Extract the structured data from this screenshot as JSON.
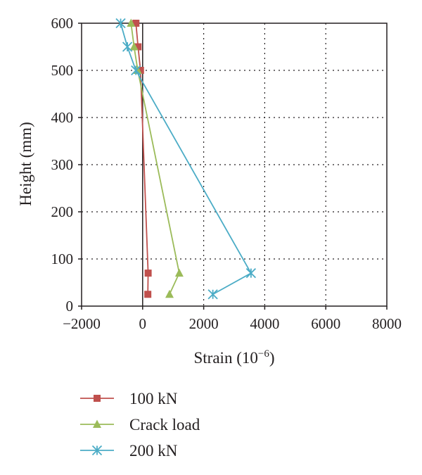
{
  "chart_data": {
    "type": "line",
    "title": "",
    "xlabel": "Strain (10",
    "xlabel_exp": "−6",
    "xlabel_close": ")",
    "ylabel": "Height (mm)",
    "xlim": [
      -2000,
      8000
    ],
    "ylim": [
      0,
      600
    ],
    "x_ticks": [
      -2000,
      0,
      2000,
      4000,
      6000,
      8000
    ],
    "x_tick_labels": [
      "−2000",
      "0",
      "2000",
      "4000",
      "6000",
      "8000"
    ],
    "y_ticks": [
      0,
      100,
      200,
      300,
      400,
      500,
      600
    ],
    "y_tick_labels": [
      "0",
      "100",
      "200",
      "300",
      "400",
      "500",
      "600"
    ],
    "grid": "dotted",
    "legend_position": "bottom",
    "series": [
      {
        "name": "100 kN",
        "color": "#c0504d",
        "marker": "square",
        "x": [
          170,
          180,
          -70,
          -150,
          -220
        ],
        "y": [
          25,
          70,
          500,
          550,
          600
        ]
      },
      {
        "name": "Crack load",
        "color": "#9bbb59",
        "marker": "triangle",
        "x": [
          880,
          1200,
          -160,
          -280,
          -380
        ],
        "y": [
          25,
          70,
          500,
          550,
          600
        ]
      },
      {
        "name": "200 kN",
        "color": "#4bacc6",
        "marker": "star",
        "x": [
          2300,
          3550,
          -220,
          -500,
          -720
        ],
        "y": [
          25,
          70,
          500,
          550,
          600
        ]
      }
    ]
  }
}
